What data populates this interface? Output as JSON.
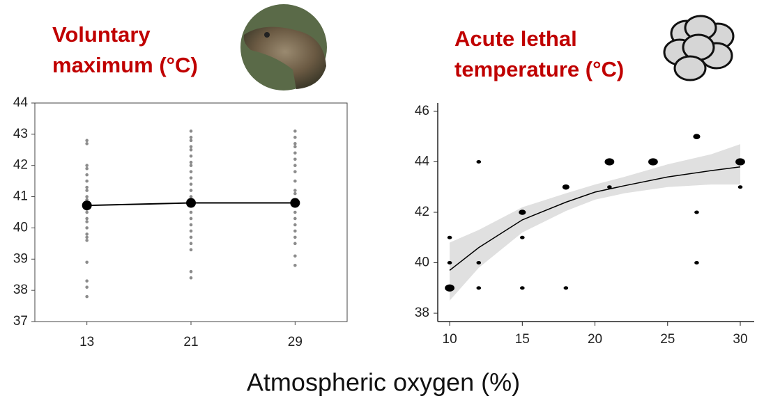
{
  "chart_data": [
    {
      "type": "strip",
      "title_lines": [
        "Voluntary",
        "maximum (°C)"
      ],
      "categories": [
        "13",
        "21",
        "29"
      ],
      "points": [
        [
          42.8,
          42.7,
          42.0,
          41.9,
          41.7,
          41.5,
          41.3,
          41.2,
          41.0,
          40.9,
          40.6,
          40.5,
          40.3,
          40.2,
          40.0,
          39.8,
          39.7,
          39.6,
          38.9,
          38.3,
          38.1,
          37.8
        ],
        [
          43.1,
          42.9,
          42.8,
          42.6,
          42.5,
          42.3,
          42.1,
          42.0,
          41.8,
          41.6,
          41.4,
          41.2,
          41.0,
          40.8,
          40.5,
          40.3,
          40.1,
          39.9,
          39.7,
          39.5,
          39.3,
          38.6,
          38.4
        ],
        [
          43.1,
          42.9,
          42.7,
          42.6,
          42.4,
          42.2,
          42.0,
          41.8,
          41.5,
          41.2,
          41.1,
          40.9,
          40.7,
          40.5,
          40.3,
          40.1,
          39.9,
          39.7,
          39.5,
          39.1,
          38.8
        ]
      ],
      "points_color": "#8c8c8c",
      "means": [
        40.72,
        40.8,
        40.8
      ],
      "means_color": "#000000",
      "ylim": [
        37,
        44
      ],
      "yticks": [
        37,
        38,
        39,
        40,
        41,
        42,
        43,
        44
      ]
    },
    {
      "type": "bubble",
      "title_lines": [
        "Acute lethal",
        "temperature (°C)"
      ],
      "x": [
        10,
        10,
        10,
        12,
        12,
        12,
        15,
        15,
        15,
        18,
        18,
        21,
        21,
        24,
        27,
        27,
        27,
        30,
        30
      ],
      "y": [
        39,
        40,
        41,
        44,
        40,
        39,
        42,
        41,
        39,
        43,
        39,
        44,
        43,
        44,
        45,
        42,
        40,
        44,
        43
      ],
      "sizes": [
        3,
        1,
        1,
        1,
        1,
        1,
        2,
        1,
        1,
        2,
        1,
        3,
        1,
        3,
        2,
        1,
        1,
        3,
        1
      ],
      "color": "#000000",
      "fit": {
        "x": [
          10,
          12,
          15,
          18,
          20,
          22,
          25,
          28,
          30
        ],
        "y": [
          39.7,
          40.6,
          41.7,
          42.4,
          42.8,
          43.05,
          43.4,
          43.65,
          43.8
        ],
        "lower": [
          38.5,
          39.8,
          41.2,
          42.05,
          42.5,
          42.75,
          43.0,
          43.1,
          43.1
        ],
        "upper": [
          40.8,
          41.3,
          42.2,
          42.75,
          43.1,
          43.4,
          43.9,
          44.3,
          44.7
        ],
        "color": "#000000",
        "band_color": "#e0e0e0"
      },
      "xlim": [
        9.18,
        30.96
      ],
      "ylim": [
        37.67,
        46.33
      ],
      "xticks": [
        10,
        15,
        20,
        25,
        30
      ],
      "yticks": [
        38,
        40,
        42,
        44,
        46
      ]
    }
  ],
  "xlabel": "Atmospheric oxygen (%)"
}
